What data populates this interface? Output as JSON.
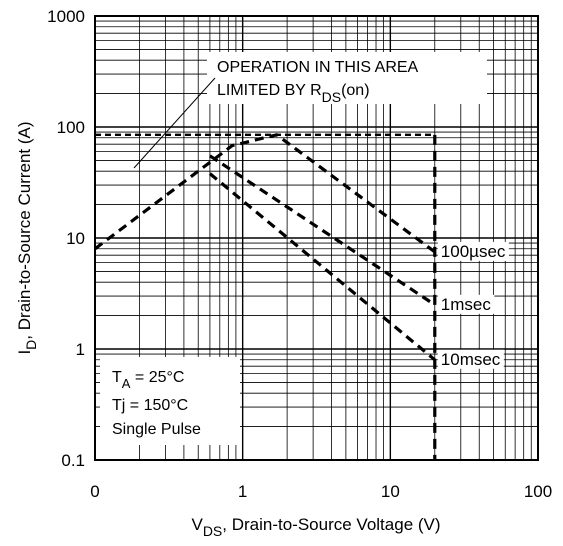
{
  "chart_data": {
    "type": "line",
    "xscale": "log",
    "yscale": "log",
    "xlim": [
      0.1,
      100
    ],
    "ylim": [
      0.1,
      1000
    ],
    "grid": true,
    "xtick_labels": [
      "0",
      "1",
      "10",
      "100"
    ],
    "ytick_labels": [
      "0.1",
      "1",
      "10",
      "100",
      "1000"
    ],
    "xlabel": {
      "prefix": "V",
      "sub": "DS",
      "rest": ", Drain-to-Source Voltage (V)"
    },
    "ylabel": {
      "prefix": "I",
      "sub": "D",
      "rest": ",  Drain-to-Source Current (A)"
    },
    "annotation": {
      "line1": "OPERATION IN THIS AREA",
      "line2_prefix": "LIMITED BY R",
      "line2_sub": "DS",
      "line2_suffix": "(on)"
    },
    "conditions": {
      "line1_prefix": "T",
      "line1_sub": "A",
      "line1_suffix": " = 25°C",
      "line2": "Tj = 150°C",
      "line3": "Single Pulse"
    },
    "series": [
      {
        "name": "100µsec",
        "x": [
          0.1,
          0.85,
          1.7,
          20
        ],
        "y": [
          8,
          68,
          85,
          7.5
        ]
      },
      {
        "name": "1msec",
        "x": [
          0.6,
          20
        ],
        "y": [
          55,
          2.5
        ]
      },
      {
        "name": "10msec",
        "x": [
          0.6,
          20
        ],
        "y": [
          38,
          0.8
        ]
      }
    ],
    "limits": {
      "current_limit": 85,
      "voltage_limit": 20
    }
  }
}
